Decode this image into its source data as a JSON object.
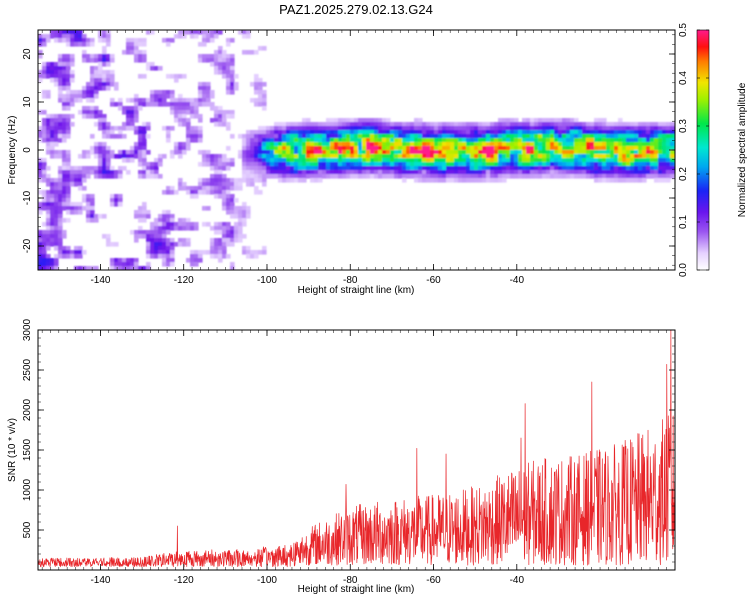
{
  "title": "PAZ1.2025.279.02.13.G24",
  "chart_data": [
    {
      "type": "heatmap",
      "name": "spectrogram",
      "xlabel": "Height of straight line (km)",
      "ylabel": "Frequency (Hz)",
      "xlim": [
        -155,
        -2
      ],
      "ylim": [
        -25,
        25
      ],
      "xticks": [
        -140,
        -120,
        -100,
        -80,
        -60,
        -40
      ],
      "xtick_labels": [
        "-140",
        "-120",
        "-100",
        "-80",
        "-60",
        "-40"
      ],
      "yticks": [
        -20,
        -10,
        0,
        10,
        20
      ],
      "ytick_labels": [
        "-20",
        "-10",
        "0",
        "10",
        "20"
      ],
      "colorbar": {
        "label": "Normalized spectral amplitude",
        "range": [
          0,
          0.5
        ],
        "ticks": [
          0,
          0.1,
          0.2,
          0.3,
          0.4,
          0.5
        ],
        "tick_labels": [
          "0.0",
          "0.1",
          "0.2",
          "0.3",
          "0.4",
          "0.5"
        ],
        "colormap": "rainbow (white-violet-blue-cyan-green-yellow-red-magenta)"
      },
      "features": {
        "noise_region_x_range": [
          -155,
          -105
        ],
        "signal_band_x_range": [
          -105,
          -2
        ],
        "signal_center_freq_hz": 0,
        "signal_halfwidth_hz": 4,
        "peak_amplitude_locations_km": [
          -88,
          -75,
          -65,
          -62,
          -47,
          -37
        ]
      }
    },
    {
      "type": "line",
      "name": "snr",
      "xlabel": "Height of straight line (km)",
      "ylabel": "SNR (10 * v/v)",
      "xlim": [
        -155,
        -2
      ],
      "ylim": [
        0,
        3000
      ],
      "xticks": [
        -140,
        -120,
        -100,
        -80,
        -60,
        -40
      ],
      "xtick_labels": [
        "-140",
        "-120",
        "-100",
        "-80",
        "-60",
        "-40"
      ],
      "yticks": [
        500,
        1000,
        1500,
        2000,
        2500,
        3000
      ],
      "ytick_labels": [
        "500",
        "1000",
        "1500",
        "2000",
        "2500",
        "3000"
      ],
      "series_color": "#e8262a",
      "envelope_points": [
        {
          "x": -155,
          "y": 150
        },
        {
          "x": -130,
          "y": 160
        },
        {
          "x": -121,
          "y": 250
        },
        {
          "x": -105,
          "y": 260
        },
        {
          "x": -95,
          "y": 330
        },
        {
          "x": -88,
          "y": 600
        },
        {
          "x": -80,
          "y": 800
        },
        {
          "x": -70,
          "y": 900
        },
        {
          "x": -60,
          "y": 950
        },
        {
          "x": -50,
          "y": 1050
        },
        {
          "x": -42,
          "y": 1250
        },
        {
          "x": -35,
          "y": 1400
        },
        {
          "x": -25,
          "y": 1450
        },
        {
          "x": -15,
          "y": 1600
        },
        {
          "x": -8,
          "y": 1800
        },
        {
          "x": -2,
          "y": 2000
        }
      ],
      "notable_spikes": [
        {
          "x": -121.5,
          "y": 550
        },
        {
          "x": -81,
          "y": 1070
        },
        {
          "x": -64,
          "y": 1520
        },
        {
          "x": -57,
          "y": 1450
        },
        {
          "x": -39,
          "y": 1650
        },
        {
          "x": -38,
          "y": 2080
        },
        {
          "x": -22,
          "y": 2350
        },
        {
          "x": -4,
          "y": 2570
        },
        {
          "x": -3,
          "y": 3000
        }
      ]
    }
  ]
}
